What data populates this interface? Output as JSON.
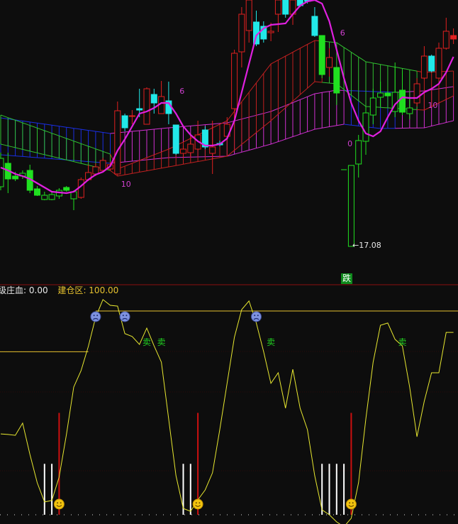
{
  "colors": {
    "background": "#0d0d0d",
    "up_candle": "#e02020",
    "down_candle": "#22e8e8",
    "weak_candle": "#20e020",
    "ma_line": "#e020e0",
    "indicator_line": "#e8e830",
    "build_zone_line": "#e6c12e",
    "separator": "#8a1010",
    "buy_bar": "#ffffff",
    "signal_line": "#cc1010",
    "sell_text": "#20d020"
  },
  "chart_data": [
    {
      "type": "candlestick",
      "title": "",
      "low_marker": {
        "index": 48,
        "value": "17.08"
      },
      "signal_badge": {
        "index": 47,
        "text": "跌"
      },
      "candles": [
        {
          "o": 17.92,
          "h": 18.4,
          "l": 17.87,
          "c": 18.32,
          "color": "green"
        },
        {
          "o": 18.25,
          "h": 18.4,
          "l": 17.83,
          "c": 18.03,
          "color": "green"
        },
        {
          "o": 18.07,
          "h": 18.13,
          "l": 18.0,
          "c": 18.03,
          "color": "green"
        },
        {
          "o": 18.07,
          "h": 18.15,
          "l": 18.03,
          "c": 18.11,
          "color": "green"
        },
        {
          "o": 18.15,
          "h": 18.23,
          "l": 17.83,
          "c": 17.87,
          "color": "green"
        },
        {
          "o": 17.89,
          "h": 17.93,
          "l": 17.79,
          "c": 17.8,
          "color": "green"
        },
        {
          "o": 17.74,
          "h": 17.85,
          "l": 17.73,
          "c": 17.8,
          "color": "green"
        },
        {
          "o": 17.74,
          "h": 17.84,
          "l": 17.73,
          "c": 17.81,
          "color": "green"
        },
        {
          "o": 17.79,
          "h": 17.9,
          "l": 17.75,
          "c": 17.87,
          "color": "green"
        },
        {
          "o": 17.91,
          "h": 17.93,
          "l": 17.85,
          "c": 17.87,
          "color": "green"
        },
        {
          "o": 17.75,
          "h": 17.87,
          "l": 17.59,
          "c": 17.85,
          "color": "green"
        },
        {
          "o": 17.77,
          "h": 18.05,
          "l": 17.75,
          "c": 18.02,
          "color": "red"
        },
        {
          "o": 18.02,
          "h": 18.23,
          "l": 18.0,
          "c": 18.12,
          "color": "red"
        },
        {
          "o": 18.1,
          "h": 18.25,
          "l": 18.07,
          "c": 18.2,
          "color": "red"
        },
        {
          "o": 18.15,
          "h": 18.33,
          "l": 18.13,
          "c": 18.29,
          "color": "red"
        },
        {
          "o": 18.17,
          "h": 18.27,
          "l": 18.15,
          "c": 18.23,
          "color": "red"
        },
        {
          "o": 18.1,
          "h": 19.12,
          "l": 18.1,
          "c": 18.99,
          "color": "red"
        },
        {
          "o": 18.92,
          "h": 18.95,
          "l": 18.7,
          "c": 18.75,
          "color": "cyan"
        },
        {
          "o": 18.91,
          "h": 19.0,
          "l": 18.8,
          "c": 18.92,
          "color": "red"
        },
        {
          "o": 19.02,
          "h": 19.3,
          "l": 18.9,
          "c": 19.0,
          "color": "cyan"
        },
        {
          "o": 18.8,
          "h": 19.32,
          "l": 18.8,
          "c": 19.3,
          "color": "red"
        },
        {
          "o": 19.22,
          "h": 19.3,
          "l": 18.95,
          "c": 19.1,
          "color": "cyan"
        },
        {
          "o": 18.95,
          "h": 19.41,
          "l": 18.95,
          "c": 19.19,
          "color": "red"
        },
        {
          "o": 19.13,
          "h": 19.4,
          "l": 18.8,
          "c": 18.95,
          "color": "cyan"
        },
        {
          "o": 18.79,
          "h": 18.79,
          "l": 18.37,
          "c": 18.39,
          "color": "cyan"
        },
        {
          "o": 18.39,
          "h": 18.5,
          "l": 18.33,
          "c": 18.45,
          "color": "red"
        },
        {
          "o": 18.4,
          "h": 18.65,
          "l": 18.35,
          "c": 18.52,
          "color": "red"
        },
        {
          "o": 18.45,
          "h": 18.85,
          "l": 18.43,
          "c": 18.65,
          "color": "red"
        },
        {
          "o": 18.72,
          "h": 18.77,
          "l": 18.45,
          "c": 18.48,
          "color": "cyan"
        },
        {
          "o": 18.39,
          "h": 18.85,
          "l": 18.1,
          "c": 18.48,
          "color": "red"
        },
        {
          "o": 18.53,
          "h": 18.57,
          "l": 18.49,
          "c": 18.51,
          "color": "cyan"
        },
        {
          "o": 18.63,
          "h": 18.9,
          "l": 18.6,
          "c": 18.8,
          "color": "red"
        },
        {
          "o": 19.02,
          "h": 19.85,
          "l": 18.85,
          "c": 19.8,
          "color": "red"
        },
        {
          "o": 19.82,
          "h": 20.45,
          "l": 19.6,
          "c": 20.35,
          "color": "red"
        },
        {
          "o": 20.12,
          "h": 20.7,
          "l": 19.95,
          "c": 20.55,
          "color": "red"
        },
        {
          "o": 20.24,
          "h": 20.4,
          "l": 19.9,
          "c": 19.93,
          "color": "cyan"
        },
        {
          "o": 20.18,
          "h": 20.25,
          "l": 19.95,
          "c": 20.0,
          "color": "cyan"
        },
        {
          "o": 20.09,
          "h": 20.23,
          "l": 19.97,
          "c": 20.11,
          "color": "red"
        },
        {
          "o": 20.35,
          "h": 20.65,
          "l": 20.1,
          "c": 20.55,
          "color": "red"
        },
        {
          "o": 20.55,
          "h": 20.65,
          "l": 20.3,
          "c": 20.35,
          "color": "cyan"
        },
        {
          "o": 20.35,
          "h": 20.65,
          "l": 20.2,
          "c": 20.55,
          "color": "red"
        },
        {
          "o": 20.55,
          "h": 20.62,
          "l": 20.45,
          "c": 20.47,
          "color": "cyan"
        },
        {
          "o": 20.55,
          "h": 20.62,
          "l": 20.5,
          "c": 20.53,
          "color": "cyan"
        },
        {
          "o": 20.32,
          "h": 20.45,
          "l": 20.03,
          "c": 20.05,
          "color": "cyan"
        },
        {
          "o": 20.05,
          "h": 20.05,
          "l": 19.45,
          "c": 19.5,
          "color": "green"
        },
        {
          "o": 19.6,
          "h": 19.87,
          "l": 19.47,
          "c": 19.74,
          "color": "red"
        },
        {
          "o": 19.6,
          "h": 19.6,
          "l": 19.07,
          "c": 19.24,
          "color": "green"
        },
        {
          "o": 18.16,
          "h": 18.16,
          "l": 18.16,
          "c": 18.16,
          "color": "green"
        },
        {
          "o": 17.08,
          "h": 18.22,
          "l": 17.08,
          "c": 18.22,
          "color": "green"
        },
        {
          "o": 18.24,
          "h": 18.65,
          "l": 18.05,
          "c": 18.57,
          "color": "green"
        },
        {
          "o": 18.56,
          "h": 19.05,
          "l": 18.37,
          "c": 18.96,
          "color": "green"
        },
        {
          "o": 18.93,
          "h": 19.3,
          "l": 18.8,
          "c": 19.17,
          "color": "green"
        },
        {
          "o": 19.18,
          "h": 19.4,
          "l": 19.05,
          "c": 19.24,
          "color": "green"
        },
        {
          "o": 19.24,
          "h": 19.25,
          "l": 19.19,
          "c": 19.2,
          "color": "green"
        },
        {
          "o": 18.98,
          "h": 19.67,
          "l": 18.9,
          "c": 19.25,
          "color": "green"
        },
        {
          "o": 19.28,
          "h": 19.55,
          "l": 18.93,
          "c": 18.97,
          "color": "green"
        },
        {
          "o": 18.95,
          "h": 19.15,
          "l": 18.87,
          "c": 19.03,
          "color": "green"
        },
        {
          "o": 19.1,
          "h": 19.45,
          "l": 19.05,
          "c": 19.37,
          "color": "red"
        },
        {
          "o": 19.45,
          "h": 19.9,
          "l": 19.43,
          "c": 19.76,
          "color": "red"
        },
        {
          "o": 19.76,
          "h": 19.78,
          "l": 19.53,
          "c": 19.55,
          "color": "cyan"
        },
        {
          "o": 19.45,
          "h": 19.95,
          "l": 19.43,
          "c": 19.87,
          "color": "red"
        },
        {
          "o": 19.87,
          "h": 20.3,
          "l": 19.85,
          "c": 20.11,
          "color": "red"
        },
        {
          "o": 20.05,
          "h": 20.15,
          "l": 19.93,
          "c": 20.0,
          "color": "red"
        }
      ],
      "ma_line": [
        18.19,
        18.15,
        18.1,
        18.07,
        18.03,
        17.97,
        17.91,
        17.85,
        17.84,
        17.83,
        17.85,
        17.93,
        18.02,
        18.09,
        18.13,
        18.21,
        18.43,
        18.59,
        18.77,
        18.95,
        18.98,
        19.03,
        19.1,
        19.1,
        18.95,
        18.77,
        18.65,
        18.56,
        18.5,
        18.5,
        18.52,
        18.6,
        18.85,
        19.25,
        19.65,
        20.05,
        20.15,
        20.2,
        20.21,
        20.22,
        20.35,
        20.47,
        20.53,
        20.55,
        20.5,
        20.25,
        19.85,
        19.45,
        19.1,
        18.85,
        18.67,
        18.63,
        18.7,
        18.9,
        19.08,
        19.18,
        19.17,
        19.17,
        19.25,
        19.3,
        19.37,
        19.53,
        19.75
      ],
      "ma_labels": [
        {
          "index": 24,
          "price": 19.28,
          "text": "6"
        },
        {
          "index": 46,
          "price": 20.1,
          "text": "6"
        },
        {
          "index": 16,
          "price": 17.97,
          "text": "10"
        },
        {
          "index": 58,
          "price": 19.08,
          "text": "10"
        },
        {
          "index": 47,
          "price": 18.54,
          "text": "0"
        }
      ],
      "clouds": [
        {
          "upper": [
            [
              0,
              18.89
            ],
            [
              15,
              18.67
            ],
            [
              23,
              18.75
            ],
            [
              31,
              18.82
            ],
            [
              37,
              18.98
            ],
            [
              43,
              19.23
            ],
            [
              46,
              19.28
            ],
            [
              54,
              19.25
            ],
            [
              58,
              19.27
            ],
            [
              62,
              19.33
            ]
          ],
          "lower": [
            [
              0,
              18.37
            ],
            [
              15,
              18.25
            ],
            [
              23,
              18.33
            ],
            [
              31,
              18.35
            ],
            [
              37,
              18.52
            ],
            [
              43,
              18.73
            ],
            [
              47,
              18.8
            ],
            [
              52,
              18.74
            ],
            [
              58,
              18.75
            ],
            [
              62,
              18.85
            ]
          ],
          "segments": [
            {
              "from": 0,
              "to": 15,
              "color": "#1a2ee0"
            },
            {
              "from": 16,
              "to": 47,
              "color": "#d030d0"
            },
            {
              "from": 48,
              "to": 54,
              "color": "#1a2ee0"
            },
            {
              "from": 55,
              "to": 62,
              "color": "#d030d0"
            }
          ]
        },
        {
          "upper": [
            [
              0,
              18.93
            ],
            [
              15,
              18.38
            ],
            [
              16,
              18.17
            ],
            [
              23,
              18.45
            ],
            [
              31,
              18.85
            ],
            [
              37,
              19.65
            ],
            [
              43,
              19.98
            ],
            [
              46,
              19.95
            ],
            [
              50,
              19.68
            ],
            [
              58,
              19.53
            ],
            [
              62,
              19.55
            ]
          ],
          "lower": [
            [
              0,
              18.52
            ],
            [
              15,
              18.15
            ],
            [
              16,
              18.07
            ],
            [
              23,
              18.2
            ],
            [
              31,
              18.35
            ],
            [
              37,
              18.85
            ],
            [
              43,
              19.4
            ],
            [
              46,
              19.37
            ],
            [
              50,
              19.05
            ],
            [
              58,
              19.0
            ],
            [
              62,
              19.2
            ]
          ],
          "segments": [
            {
              "from": 0,
              "to": 15,
              "color": "#30c030"
            },
            {
              "from": 16,
              "to": 44,
              "color": "#c02020"
            },
            {
              "from": 45,
              "to": 57,
              "color": "#30c030"
            },
            {
              "from": 58,
              "to": 62,
              "color": "#c02020"
            }
          ]
        }
      ]
    },
    {
      "type": "line",
      "title": "",
      "legend": [
        {
          "label": "级庄血",
          "value": "0.00"
        },
        {
          "label": "建仓区",
          "value": "100.00"
        }
      ],
      "series": [
        39.7,
        39.4,
        39.0,
        45.0,
        29.6,
        15.7,
        6.3,
        7.0,
        18.5,
        39.4,
        62.7,
        70.7,
        82.6,
        96.9,
        105.6,
        102.8,
        102.4,
        88.9,
        87.5,
        83.6,
        91.6,
        82.9,
        74.9,
        47.0,
        19.2,
        3.1,
        1.7,
        7.3,
        12.2,
        20.6,
        41.8,
        64.5,
        87.1,
        100.7,
        104.9,
        94.1,
        80.1,
        64.5,
        69.7,
        52.3,
        71.4,
        52.3,
        41.8,
        19.2,
        2.4,
        0,
        -3.5,
        -5.9,
        -1.7,
        15.7,
        47.0,
        74.9,
        93.0,
        94.1,
        86.1,
        82.9,
        62.7,
        38.3,
        55.7,
        69.7,
        69.7,
        89.5,
        89.5
      ],
      "build_zone": [
        {
          "from": 0,
          "to": 12,
          "value": 80
        },
        {
          "from": 13,
          "to": 62,
          "value": 100
        }
      ],
      "ylim": [
        -8,
        110
      ],
      "sad_markers": [
        13,
        17,
        35
      ],
      "smile_markers": [
        8,
        27,
        48
      ],
      "signal_lines": {
        "indices": [
          8,
          27,
          48
        ],
        "value": 50
      },
      "buy_bars": {
        "indices": [
          6,
          7,
          25,
          26,
          44,
          45,
          46,
          47
        ],
        "value": 25
      },
      "sell_labels": [
        {
          "index": 20,
          "text": "卖"
        },
        {
          "index": 22,
          "text": "卖"
        },
        {
          "index": 37,
          "text": "卖"
        },
        {
          "index": 55,
          "text": "卖"
        }
      ]
    }
  ]
}
